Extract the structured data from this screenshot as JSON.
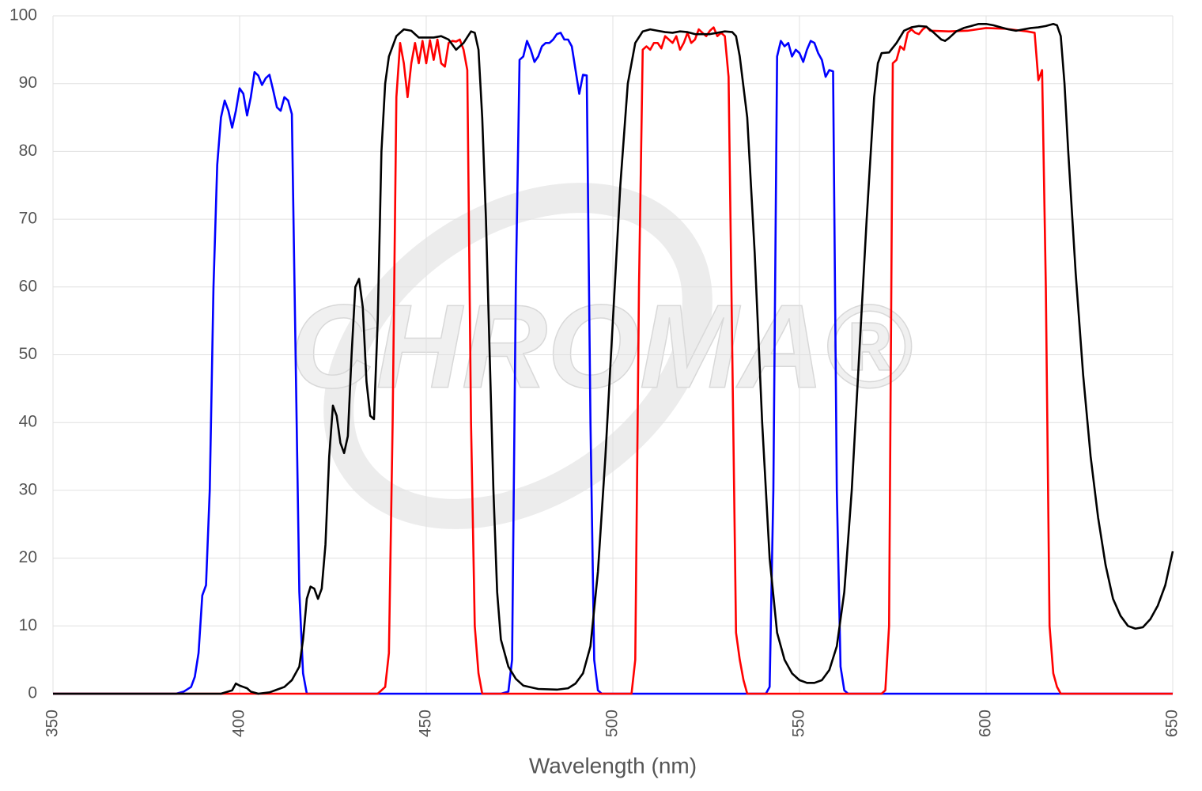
{
  "chart_data": {
    "type": "line",
    "x_label": "Wavelength (nm)",
    "watermark": "CHROMA®",
    "xlim": [
      350,
      650
    ],
    "xticks": [
      350,
      400,
      450,
      500,
      550,
      600,
      650
    ],
    "ylim": [
      0,
      100
    ],
    "yticks": [
      0,
      10,
      20,
      30,
      40,
      50,
      60,
      70,
      80,
      90,
      100
    ],
    "grid": true,
    "series": [
      {
        "color": "#0000ff",
        "x": [
          350,
          383,
          385,
          387,
          388,
          389,
          390,
          391,
          392,
          393,
          394,
          395,
          396,
          397,
          398,
          399,
          400,
          401,
          402,
          403,
          404,
          405,
          406,
          407,
          408,
          409,
          410,
          411,
          412,
          413,
          414,
          415,
          416,
          417,
          418,
          470,
          472,
          473,
          474,
          475,
          476,
          477,
          478,
          479,
          480,
          481,
          482,
          483,
          484,
          485,
          486,
          487,
          488,
          489,
          490,
          491,
          492,
          493,
          494,
          495,
          496,
          497,
          541,
          542,
          543,
          544,
          545,
          546,
          547,
          548,
          549,
          550,
          551,
          552,
          553,
          554,
          555,
          556,
          557,
          558,
          559,
          560,
          561,
          562,
          563,
          650
        ],
        "values": [
          0,
          0,
          0.3,
          1,
          2.5,
          6,
          14.5,
          16,
          30,
          60,
          78,
          85,
          87.5,
          86,
          83.5,
          86,
          89.3,
          88.5,
          85.3,
          88,
          91.7,
          91.2,
          89.8,
          90.8,
          91.3,
          89,
          86.5,
          86,
          88,
          87.5,
          85.5,
          50,
          15,
          3,
          0,
          0,
          0.3,
          5,
          60,
          93.5,
          94,
          96.3,
          95,
          93.2,
          94,
          95.5,
          96,
          96,
          96.5,
          97.3,
          97.5,
          96.5,
          96.5,
          95.5,
          92,
          88.5,
          91.3,
          91.2,
          40,
          5,
          0.5,
          0,
          0,
          1,
          30,
          94,
          96.3,
          95.5,
          96,
          94,
          95,
          94.5,
          93.2,
          95,
          96.3,
          96,
          94.5,
          93.5,
          91,
          92,
          91.8,
          30,
          4,
          0.5,
          0,
          0
        ]
      },
      {
        "color": "#ff0000",
        "x": [
          350,
          437,
          439,
          440,
          441,
          442,
          443,
          444,
          445,
          446,
          447,
          448,
          449,
          450,
          451,
          452,
          453,
          454,
          455,
          456,
          457,
          458,
          459,
          460,
          461,
          462,
          463,
          464,
          465,
          505,
          506,
          507,
          508,
          509,
          510,
          511,
          512,
          513,
          514,
          515,
          516,
          517,
          518,
          519,
          520,
          521,
          522,
          523,
          524,
          525,
          526,
          527,
          528,
          529,
          530,
          531,
          532,
          533,
          534,
          535,
          536,
          572,
          573,
          574,
          575,
          576,
          577,
          578,
          579,
          580,
          581,
          582,
          583,
          584,
          585,
          590,
          595,
          600,
          605,
          608,
          611,
          612,
          613,
          614,
          615,
          616,
          617,
          618,
          619,
          620,
          650
        ],
        "values": [
          0,
          0,
          1,
          6,
          40,
          88,
          96,
          93,
          88,
          93,
          96,
          93,
          96.3,
          93,
          96.4,
          93.5,
          96.5,
          93,
          92.5,
          96,
          96.3,
          96.2,
          96.5,
          95,
          92,
          40,
          10,
          3,
          0,
          0,
          5,
          60,
          95,
          95.5,
          95,
          96,
          96,
          95.2,
          97,
          96.5,
          96,
          97,
          95,
          96,
          97.5,
          96,
          96.5,
          98,
          97.5,
          97,
          97.8,
          98.3,
          97,
          97.5,
          97,
          91,
          50,
          9,
          5,
          2,
          0,
          0,
          0.5,
          10,
          93,
          93.5,
          95.5,
          95,
          97.5,
          98,
          97.5,
          97.3,
          98,
          98.4,
          97.8,
          97.7,
          97.8,
          98.2,
          98.1,
          97.9,
          97.7,
          97.6,
          97.5,
          90.5,
          92,
          60,
          10,
          3,
          1,
          0,
          0
        ]
      },
      {
        "color": "#000000",
        "x": [
          350,
          395,
          398,
          399,
          400,
          401,
          402,
          403,
          405,
          408,
          410,
          412,
          414,
          416,
          417,
          418,
          419,
          420,
          421,
          422,
          423,
          424,
          425,
          426,
          427,
          428,
          429,
          430,
          431,
          432,
          433,
          434,
          435,
          436,
          437,
          438,
          439,
          440,
          442,
          444,
          446,
          448,
          450,
          452,
          454,
          456,
          458,
          460,
          462,
          463,
          464,
          465,
          466,
          467,
          468,
          469,
          470,
          472,
          474,
          476,
          480,
          485,
          488,
          490,
          492,
          494,
          496,
          498,
          500,
          502,
          504,
          506,
          508,
          510,
          512,
          514,
          516,
          518,
          520,
          522,
          524,
          526,
          528,
          530,
          532,
          533,
          534,
          536,
          538,
          540,
          542,
          544,
          546,
          548,
          550,
          552,
          554,
          556,
          558,
          560,
          562,
          564,
          566,
          568,
          570,
          571,
          572,
          574,
          576,
          578,
          580,
          582,
          584,
          586,
          588,
          589,
          590,
          592,
          594,
          596,
          598,
          600,
          602,
          604,
          606,
          608,
          610,
          612,
          614,
          616,
          618,
          619,
          620,
          621,
          622,
          624,
          626,
          628,
          630,
          632,
          634,
          636,
          638,
          640,
          642,
          644,
          646,
          648,
          650
        ],
        "values": [
          0,
          0,
          0.5,
          1.5,
          1.2,
          1,
          0.8,
          0.3,
          0,
          0.2,
          0.6,
          1,
          2,
          4,
          8,
          14,
          15.8,
          15.5,
          14,
          15.5,
          22,
          35,
          42.5,
          41,
          37,
          35.5,
          38,
          50,
          60,
          61.2,
          57,
          46,
          41,
          40.5,
          55,
          80,
          90,
          94,
          97,
          98,
          97.8,
          96.8,
          96.8,
          96.8,
          97,
          96.5,
          95,
          96,
          97.7,
          97.5,
          95,
          85,
          70,
          50,
          30,
          15,
          8,
          4,
          2.2,
          1.2,
          0.7,
          0.6,
          0.8,
          1.5,
          3,
          7,
          18,
          35,
          55,
          75,
          90,
          96,
          97.7,
          98,
          97.8,
          97.6,
          97.5,
          97.7,
          97.6,
          97.3,
          97.3,
          97.3,
          97.5,
          97.7,
          97.6,
          97,
          94,
          85,
          65,
          40,
          20,
          9,
          5,
          3,
          2,
          1.6,
          1.6,
          2,
          3.5,
          7,
          15,
          30,
          50,
          70,
          88,
          93,
          94.5,
          94.6,
          96,
          97.8,
          98.3,
          98.5,
          98.4,
          97.5,
          96.5,
          96.3,
          96.7,
          97.7,
          98.2,
          98.5,
          98.8,
          98.8,
          98.6,
          98.3,
          98,
          97.8,
          98,
          98.2,
          98.3,
          98.5,
          98.8,
          98.6,
          97,
          90,
          80,
          62,
          47,
          35,
          26,
          19,
          14,
          11.5,
          10,
          9.6,
          9.8,
          11,
          13,
          16,
          21
        ]
      }
    ]
  }
}
